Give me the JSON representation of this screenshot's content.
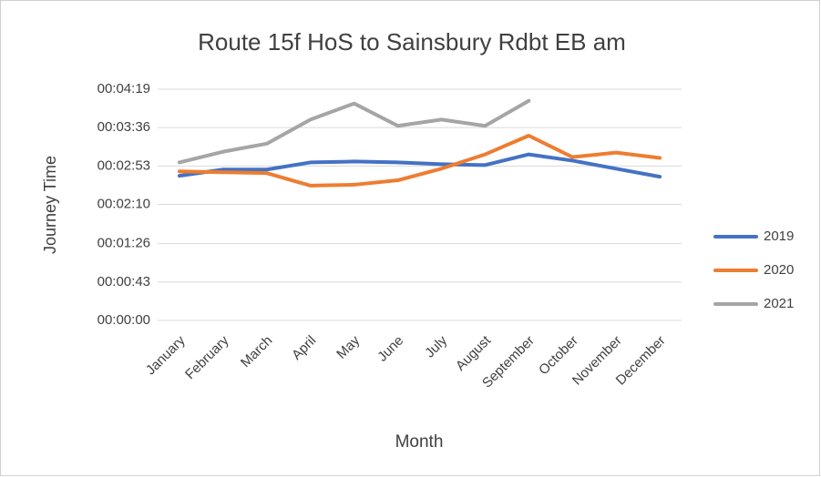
{
  "chart_data": {
    "type": "line",
    "title": "Route 15f HoS to Sainsbury Rdbt EB am",
    "x_label": "Month",
    "y_label": "Journey Time",
    "categories": [
      "January",
      "February",
      "March",
      "April",
      "May",
      "June",
      "July",
      "August",
      "September",
      "October",
      "November",
      "December"
    ],
    "series": [
      {
        "name": "2019",
        "color": "#4472c4",
        "values": [
          162,
          169,
          169,
          177,
          178,
          177,
          175,
          174,
          186,
          179,
          170,
          161
        ]
      },
      {
        "name": "2020",
        "color": "#ed7d31",
        "values": [
          167,
          166,
          165,
          151,
          152,
          157,
          170,
          186,
          207,
          183,
          188,
          182
        ]
      },
      {
        "name": "2021",
        "color": "#a5a5a5",
        "values": [
          177,
          189,
          198,
          225,
          243,
          218,
          225,
          218,
          246,
          null,
          null,
          null
        ]
      }
    ],
    "ylim": [
      0,
      259
    ],
    "yticks": [
      {
        "value": 0,
        "label": "00:00:00"
      },
      {
        "value": 43,
        "label": "00:00:43"
      },
      {
        "value": 86,
        "label": "00:01:26"
      },
      {
        "value": 130,
        "label": "00:02:10"
      },
      {
        "value": 173,
        "label": "00:02:53"
      },
      {
        "value": 216,
        "label": "00:03:36"
      },
      {
        "value": 259,
        "label": "00:04:19"
      }
    ],
    "grid": true,
    "legend": "right"
  }
}
